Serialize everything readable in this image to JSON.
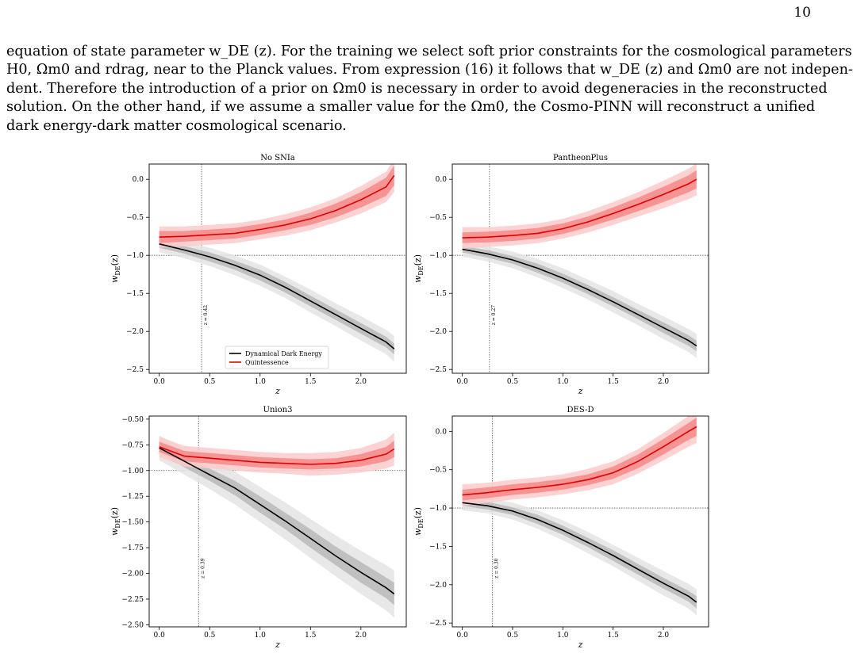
{
  "page": {
    "number": "10",
    "text_lines": [
      "equation of state parameter w_DE (z). For the training we select soft prior constraints for the cosmological parameters",
      "H0, Ωm0 and rdrag, near to the Planck values. From expression (16) it follows that w_DE (z) and Ωm0 are not indepen-",
      "dent. Therefore the introduction of a prior on Ωm0 is necessary in order to avoid degeneracies in the reconstructed",
      "solution. On the other hand, if we assume a smaller value for the Ωm0, the Cosmo-PINN will reconstruct a unified",
      "dark energy-dark matter cosmological scenario."
    ]
  },
  "colors": {
    "dde_line": "#000000",
    "dde_band_inner": "#b8b8b8",
    "dde_band_outer": "#e4e4e4",
    "quint_line": "#e00000",
    "quint_band_inner": "#f58a8a",
    "quint_band_outer": "#fbcaca"
  },
  "chart_data": [
    {
      "type": "line",
      "title": "No SNIa",
      "xlabel": "z",
      "ylabel": "w_DE(z)",
      "xlim": [
        -0.1,
        2.45
      ],
      "ylim": [
        -2.55,
        0.2
      ],
      "xticks": [
        0.0,
        0.5,
        1.0,
        1.5,
        2.0
      ],
      "xtick_labels": [
        "0.0",
        "0.5",
        "1.0",
        "1.5",
        "2.0"
      ],
      "yticks": [
        0.0,
        -0.5,
        -1.0,
        -1.5,
        -2.0,
        -2.5
      ],
      "ytick_labels": [
        "0.0",
        "−0.5",
        "−1.0",
        "−1.5",
        "−2.0",
        "−2.5"
      ],
      "hline": -1.0,
      "vline": 0.42,
      "vline_label": "z = 0.42",
      "legend": {
        "position": "lower-center",
        "entries": [
          "Dynamical Dark Energy",
          "Quintessence"
        ]
      },
      "x": [
        0.0,
        0.25,
        0.5,
        0.75,
        1.0,
        1.25,
        1.5,
        1.75,
        2.0,
        2.25,
        2.33
      ],
      "series": [
        {
          "name": "Dynamical Dark Energy",
          "values": [
            -0.85,
            -0.93,
            -1.02,
            -1.13,
            -1.26,
            -1.42,
            -1.6,
            -1.78,
            -1.96,
            -2.14,
            -2.23
          ],
          "band1": [
            0.05,
            0.05,
            0.06,
            0.06,
            0.07,
            0.07,
            0.07,
            0.07,
            0.07,
            0.07,
            0.07
          ],
          "band2": [
            0.11,
            0.11,
            0.12,
            0.13,
            0.14,
            0.14,
            0.15,
            0.15,
            0.16,
            0.16,
            0.17
          ]
        },
        {
          "name": "Quintessence",
          "values": [
            -0.76,
            -0.75,
            -0.73,
            -0.71,
            -0.66,
            -0.6,
            -0.52,
            -0.41,
            -0.27,
            -0.1,
            0.05
          ],
          "band1": [
            0.08,
            0.07,
            0.07,
            0.07,
            0.07,
            0.07,
            0.08,
            0.09,
            0.1,
            0.12,
            0.13
          ],
          "band2": [
            0.14,
            0.13,
            0.13,
            0.13,
            0.13,
            0.14,
            0.15,
            0.16,
            0.18,
            0.2,
            0.22
          ]
        }
      ]
    },
    {
      "type": "line",
      "title": "PantheonPlus",
      "xlabel": "z",
      "ylabel": "w_DE(z)",
      "xlim": [
        -0.1,
        2.45
      ],
      "ylim": [
        -2.55,
        0.2
      ],
      "xticks": [
        0.0,
        0.5,
        1.0,
        1.5,
        2.0
      ],
      "xtick_labels": [
        "0.0",
        "0.5",
        "1.0",
        "1.5",
        "2.0"
      ],
      "yticks": [
        0.0,
        -0.5,
        -1.0,
        -1.5,
        -2.0,
        -2.5
      ],
      "ytick_labels": [
        "0.0",
        "−0.5",
        "−1.0",
        "−1.5",
        "−2.0",
        "−2.5"
      ],
      "hline": -1.0,
      "vline": 0.27,
      "vline_label": "z = 0.27",
      "x": [
        0.0,
        0.25,
        0.5,
        0.75,
        1.0,
        1.25,
        1.5,
        1.75,
        2.0,
        2.25,
        2.33
      ],
      "series": [
        {
          "name": "Dynamical Dark Energy",
          "values": [
            -0.92,
            -0.98,
            -1.06,
            -1.17,
            -1.3,
            -1.45,
            -1.61,
            -1.78,
            -1.95,
            -2.12,
            -2.19
          ],
          "band1": [
            0.04,
            0.05,
            0.05,
            0.06,
            0.06,
            0.06,
            0.06,
            0.06,
            0.07,
            0.07,
            0.07
          ],
          "band2": [
            0.1,
            0.1,
            0.11,
            0.12,
            0.13,
            0.13,
            0.14,
            0.14,
            0.15,
            0.15,
            0.16
          ]
        },
        {
          "name": "Quintessence",
          "values": [
            -0.77,
            -0.76,
            -0.74,
            -0.71,
            -0.65,
            -0.56,
            -0.45,
            -0.33,
            -0.2,
            -0.06,
            0.0
          ],
          "band1": [
            0.07,
            0.07,
            0.07,
            0.07,
            0.07,
            0.07,
            0.08,
            0.09,
            0.1,
            0.11,
            0.12
          ],
          "band2": [
            0.14,
            0.13,
            0.13,
            0.13,
            0.13,
            0.14,
            0.15,
            0.16,
            0.18,
            0.2,
            0.21
          ]
        }
      ]
    },
    {
      "type": "line",
      "title": "Union3",
      "xlabel": "z",
      "ylabel": "w_DE(z)",
      "xlim": [
        -0.1,
        2.45
      ],
      "ylim": [
        -2.52,
        -0.47
      ],
      "xticks": [
        0.0,
        0.5,
        1.0,
        1.5,
        2.0
      ],
      "xtick_labels": [
        "0.0",
        "0.5",
        "1.0",
        "1.5",
        "2.0"
      ],
      "yticks": [
        -0.5,
        -0.75,
        -1.0,
        -1.25,
        -1.5,
        -1.75,
        -2.0,
        -2.25,
        -2.5
      ],
      "ytick_labels": [
        "−0.50",
        "−0.75",
        "−1.00",
        "−1.25",
        "−1.50",
        "−1.75",
        "−2.00",
        "−2.25",
        "−2.50"
      ],
      "hline": -1.0,
      "vline": 0.39,
      "vline_label": "z = 0.39",
      "x": [
        0.0,
        0.25,
        0.5,
        0.75,
        1.0,
        1.25,
        1.5,
        1.75,
        2.0,
        2.25,
        2.33
      ],
      "series": [
        {
          "name": "Dynamical Dark Energy",
          "values": [
            -0.78,
            -0.91,
            -1.04,
            -1.17,
            -1.33,
            -1.49,
            -1.66,
            -1.83,
            -1.99,
            -2.14,
            -2.2
          ],
          "band1": [
            0.05,
            0.06,
            0.06,
            0.07,
            0.08,
            0.08,
            0.09,
            0.09,
            0.1,
            0.1,
            0.11
          ],
          "band2": [
            0.12,
            0.13,
            0.14,
            0.16,
            0.17,
            0.18,
            0.19,
            0.2,
            0.21,
            0.22,
            0.23
          ]
        },
        {
          "name": "Quintessence",
          "values": [
            -0.77,
            -0.86,
            -0.88,
            -0.9,
            -0.92,
            -0.93,
            -0.94,
            -0.93,
            -0.9,
            -0.84,
            -0.79
          ],
          "band1": [
            0.05,
            0.05,
            0.05,
            0.05,
            0.05,
            0.05,
            0.05,
            0.05,
            0.06,
            0.07,
            0.08
          ],
          "band2": [
            0.1,
            0.1,
            0.1,
            0.1,
            0.1,
            0.1,
            0.11,
            0.11,
            0.12,
            0.14,
            0.16
          ]
        }
      ]
    },
    {
      "type": "line",
      "title": "DES-D",
      "xlabel": "z",
      "ylabel": "w_DE(z)",
      "xlim": [
        -0.1,
        2.45
      ],
      "ylim": [
        -2.55,
        0.2
      ],
      "xticks": [
        0.0,
        0.5,
        1.0,
        1.5,
        2.0
      ],
      "xtick_labels": [
        "0.0",
        "0.5",
        "1.0",
        "1.5",
        "2.0"
      ],
      "yticks": [
        0.0,
        -0.5,
        -1.0,
        -1.5,
        -2.0,
        -2.5
      ],
      "ytick_labels": [
        "0.0",
        "−0.5",
        "−1.0",
        "−1.5",
        "−2.0",
        "−2.5"
      ],
      "hline": -1.0,
      "vline": 0.3,
      "vline_label": "z = 0.30",
      "x": [
        0.0,
        0.25,
        0.5,
        0.75,
        1.0,
        1.25,
        1.5,
        1.75,
        2.0,
        2.25,
        2.33
      ],
      "series": [
        {
          "name": "Dynamical Dark Energy",
          "values": [
            -0.93,
            -0.97,
            -1.04,
            -1.15,
            -1.29,
            -1.45,
            -1.62,
            -1.8,
            -1.98,
            -2.15,
            -2.23
          ],
          "band1": [
            0.04,
            0.05,
            0.05,
            0.06,
            0.06,
            0.06,
            0.07,
            0.07,
            0.07,
            0.07,
            0.08
          ],
          "band2": [
            0.1,
            0.1,
            0.11,
            0.12,
            0.13,
            0.14,
            0.14,
            0.15,
            0.16,
            0.16,
            0.17
          ]
        },
        {
          "name": "Quintessence",
          "values": [
            -0.83,
            -0.8,
            -0.76,
            -0.73,
            -0.69,
            -0.63,
            -0.54,
            -0.39,
            -0.2,
            0.0,
            0.06
          ],
          "band1": [
            0.07,
            0.07,
            0.07,
            0.07,
            0.07,
            0.07,
            0.08,
            0.09,
            0.1,
            0.11,
            0.12
          ],
          "band2": [
            0.14,
            0.13,
            0.13,
            0.13,
            0.13,
            0.14,
            0.15,
            0.16,
            0.18,
            0.2,
            0.21
          ]
        }
      ]
    }
  ]
}
